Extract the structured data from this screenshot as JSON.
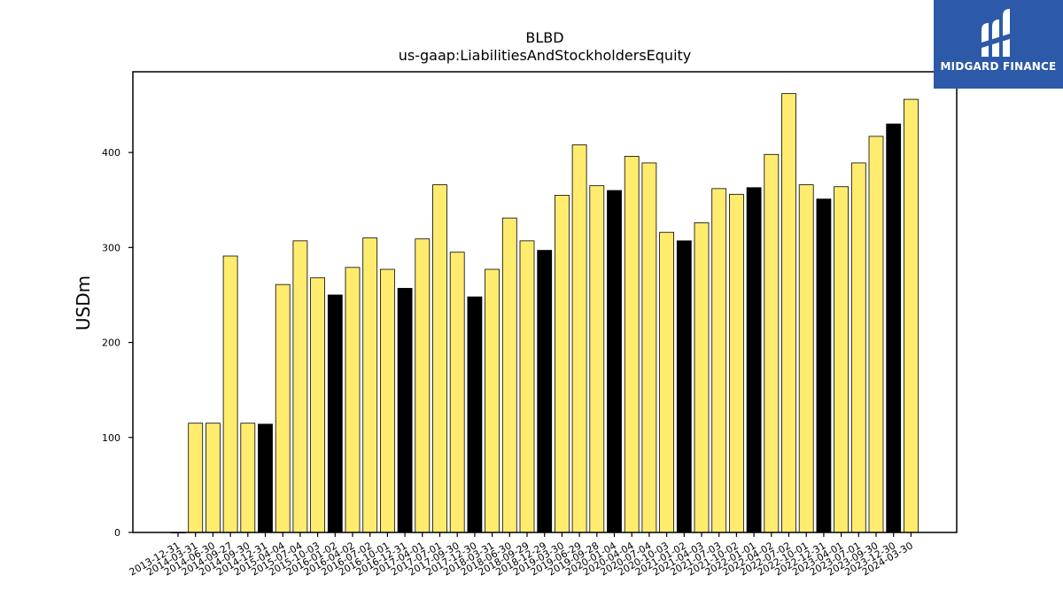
{
  "chart_data": {
    "type": "bar",
    "title": "BLBD",
    "subtitle": "us-gaap:LiabilitiesAndStockholdersEquity",
    "xlabel": "",
    "ylabel": "USDm",
    "ylim": [
      0,
      485
    ],
    "yticks": [
      0,
      100,
      200,
      300,
      400
    ],
    "grid": false,
    "categories": [
      "2013-12-31",
      "2014-03-31",
      "2014-06-30",
      "2014-09-27",
      "2014-09-30",
      "2014-12-31",
      "2015-04-04",
      "2015-07-04",
      "2015-10-03",
      "2016-01-02",
      "2016-04-02",
      "2016-07-02",
      "2016-10-01",
      "2016-12-31",
      "2017-04-01",
      "2017-07-01",
      "2017-09-30",
      "2017-12-30",
      "2018-03-31",
      "2018-06-30",
      "2018-09-29",
      "2018-12-29",
      "2019-03-30",
      "2019-06-29",
      "2019-09-28",
      "2020-01-04",
      "2020-04-04",
      "2020-07-04",
      "2020-10-03",
      "2021-01-02",
      "2021-04-03",
      "2021-07-03",
      "2021-10-02",
      "2022-01-01",
      "2022-04-02",
      "2022-07-02",
      "2022-10-01",
      "2022-12-31",
      "2023-04-01",
      "2023-07-01",
      "2023-09-30",
      "2023-12-30",
      "2024-03-30"
    ],
    "values": [
      0,
      115,
      115,
      291,
      115,
      114,
      261,
      307,
      268,
      250,
      279,
      310,
      277,
      257,
      309,
      366,
      295,
      248,
      277,
      331,
      307,
      297,
      355,
      408,
      365,
      360,
      396,
      389,
      316,
      307,
      326,
      362,
      356,
      363,
      398,
      462,
      366,
      351,
      364,
      389,
      417,
      430,
      456
    ],
    "highlight": [
      false,
      false,
      false,
      false,
      false,
      true,
      false,
      false,
      false,
      true,
      false,
      false,
      false,
      true,
      false,
      false,
      false,
      true,
      false,
      false,
      false,
      true,
      false,
      false,
      false,
      true,
      false,
      false,
      false,
      true,
      false,
      false,
      false,
      true,
      false,
      false,
      false,
      true,
      false,
      false,
      false,
      true,
      false
    ],
    "colors": {
      "bar": "#ffec6e",
      "highlight": "#000000",
      "edge": "#000000"
    }
  },
  "logo": {
    "text": "MIDGARD FINANCE",
    "background": "#2c5aa8"
  }
}
